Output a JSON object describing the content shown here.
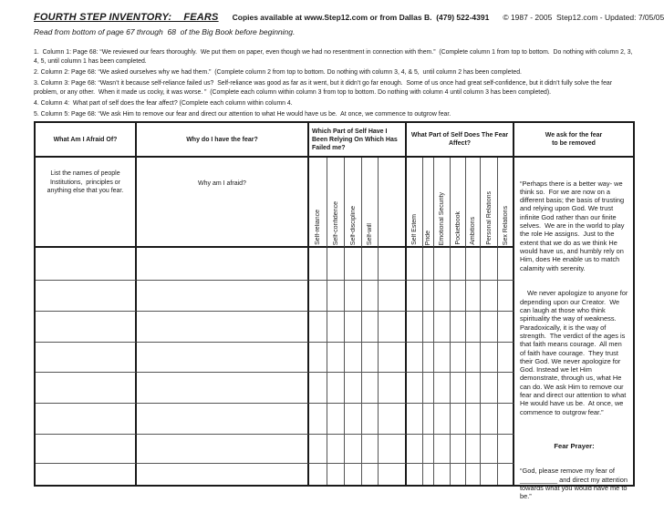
{
  "header": {
    "title": "FOURTH STEP INVENTORY:    FEARS",
    "copies": "Copies available at www.Step12.com or from Dallas B.  (479) 522-4391",
    "copyright": "© 1987 - 2005  Step12.com - Updated: 7/05/05",
    "subtitle": "Read from bottom of page 67 through  68  of the Big Book before beginning."
  },
  "instructions": {
    "items": [
      "1.  Column 1: Page 68: “We reviewed our fears thoroughly.  We put them on paper, even though we had no resentment in connection with them.”  (Complete column 1 from top to bottom.  Do nothing with column 2, 3, 4, 5, until column 1 has been completed.",
      "2. Column 2: Page 68: “We asked ourselves why we had them.”  (Complete column 2 from top to bottom. Do nothing with column 3, 4, & 5,  until column 2 has been completed.",
      "3. Column 3: Page 68: “Wasn’t it because self-reliance failed us?  Self-reliance was good as far as it went, but it didn’t go far enough.  Some of us once had great self-confidence, but it didn’t fully solve the fear problem, or any other.  When it made us cocky, it was worse. ”  (Complete each column within column 3 from top to bottom. Do nothing with column 4 until column 3 has been completed).",
      "4. Column 4:  What part of self does the fear affect? (Complete each column within column 4.",
      "5. Column 5: Page 68: “We ask Him to remove our fear and direct our attention to what He would have us be.  At once, we commence to outgrow fear."
    ]
  },
  "table": {
    "empty_rows": 8,
    "columns": {
      "afraid": {
        "header": "What Am I Afraid Of?",
        "hint": "List the names of people Institutions,  principles or anything else that you fear."
      },
      "why": {
        "header": "Why do I have the fear?",
        "hint": "Why am I afraid?"
      },
      "relying": {
        "header": "Which Part of Self Have I Been Relying On Which Has Failed me?",
        "sublabels": [
          "Self-reliance",
          "Self-confidence",
          "Self-discipline",
          "Self-will",
          ""
        ]
      },
      "affect": {
        "header": "What Part of Self Does The Fear Affect?",
        "sublabels": [
          "Self Estem",
          "Pride",
          "Emotional Security",
          "Pocketbook",
          "Ambitions",
          "Personal Relations",
          "Sex Relations"
        ]
      },
      "removed": {
        "header": "We ask for the fear\nto be removed"
      }
    },
    "quote": {
      "p1": "“Perhaps there is a better way- we think so.  For we are now on a different basis; the basis of trusting and relying upon God. We trust infinite God rather than our finite selves.  We are in the world to play the role He assigns.  Just to the extent that we do as we think He would have us, and humbly rely on Him, does He enable us to match calamity with serenity.",
      "p2": "We never apologize to anyone for depending upon our Creator.  We can laugh at those who think spirituality the way of weakness.  Paradoxically, it is the way of strength.  The verdict of the ages is that faith means courage.  All men of faith have courage.  They trust their God. We never apologize for God. Instead we let Him demonstrate, through us, what He can do. We ask Him to remove our fear and direct our attention to what He would have us be.  At once, we commence to outgrow fear.”",
      "prayer_title": "Fear Prayer:",
      "prayer": "“God, please remove my fear of __________ and direct my attention towards what you would have me to be.”"
    }
  }
}
